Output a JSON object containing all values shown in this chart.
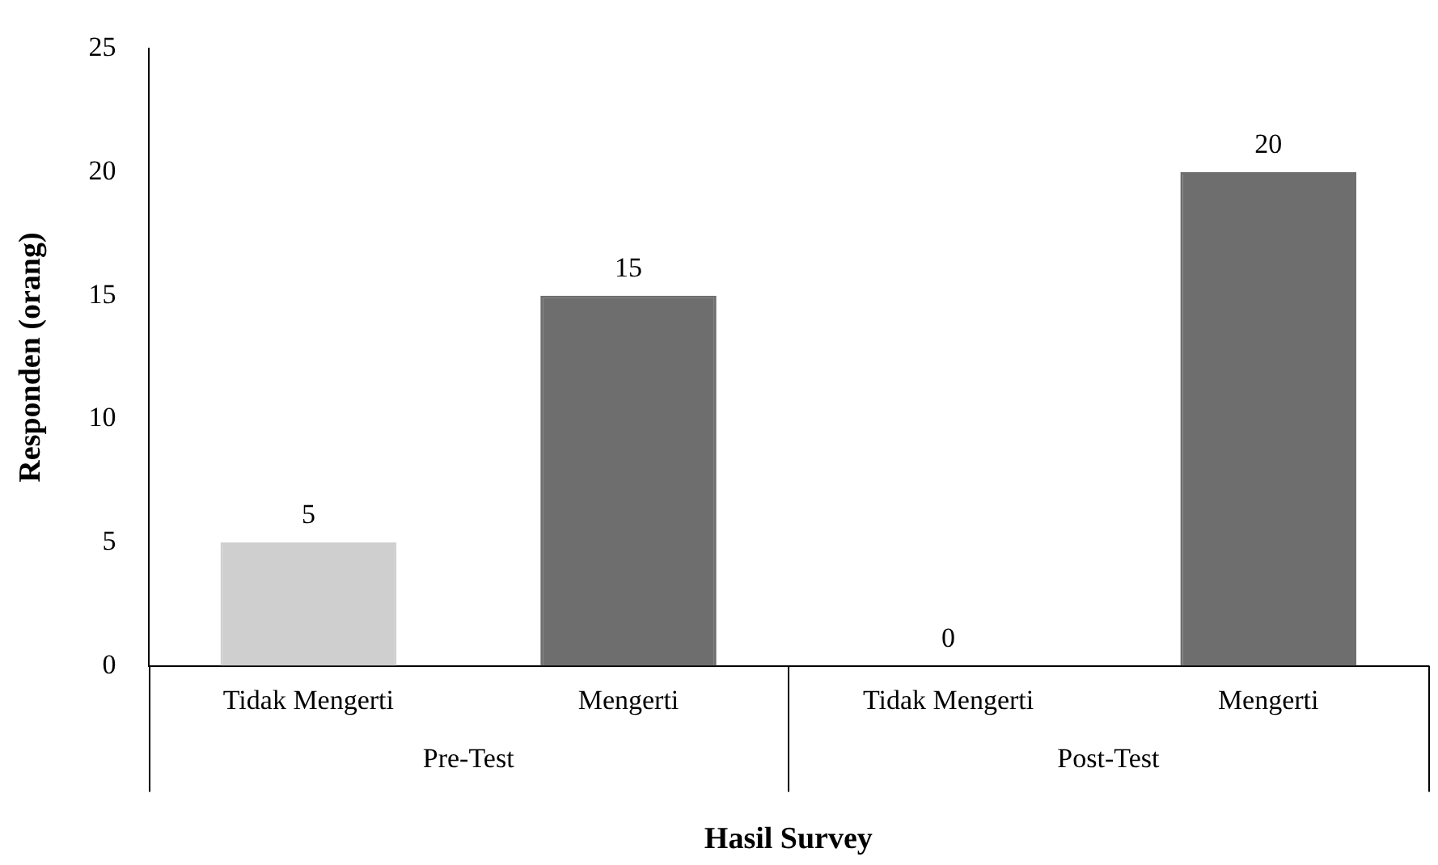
{
  "chart_data": {
    "type": "bar",
    "xlabel": "Hasil Survey",
    "ylabel": "Responden (orang)",
    "categories": [
      "Tidak Mengerti",
      "Mengerti",
      "Tidak Mengerti",
      "Mengerti"
    ],
    "values": [
      5,
      15,
      0,
      20
    ],
    "colors": [
      "#cfcfcf",
      "#6e6e6e",
      "#cfcfcf",
      "#6e6e6e"
    ],
    "ylim": [
      0,
      25
    ],
    "yticks": [
      0,
      5,
      10,
      15,
      20,
      25
    ],
    "grid": false,
    "legend": false,
    "data_labels": true,
    "annotations": [
      "Pre-Test",
      "Post-Test"
    ]
  }
}
